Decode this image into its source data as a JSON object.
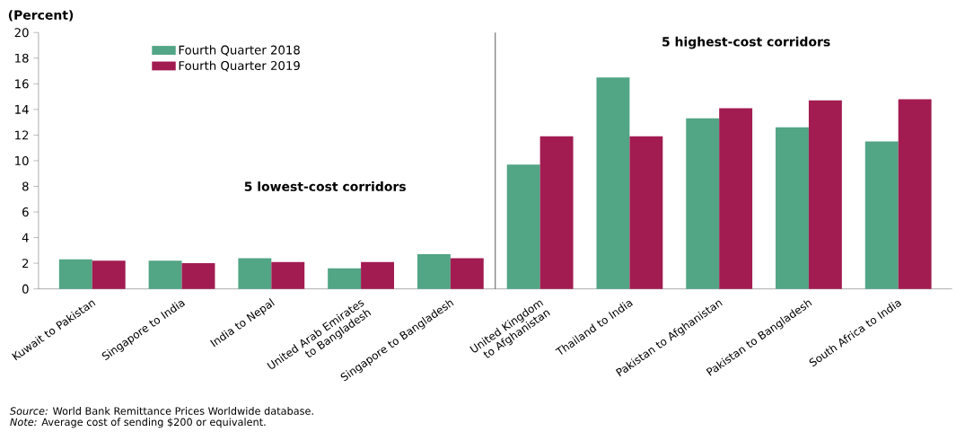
{
  "chart_data": {
    "type": "bar",
    "ylabel": "(Percent)",
    "categories": [
      "Kuwait to Pakistan",
      "Singapore to India",
      "India to Nepal",
      "United Arab Emirates to Bangladesh",
      "Singapore to Bangladesh",
      "United Kingdom to Afghanistan",
      "Thailand to India",
      "Pakistan to Afghanistan",
      "Pakistan to Bangladesh",
      "South Africa to India"
    ],
    "series": [
      {
        "name": "Fourth Quarter 2018",
        "color": "#52a585",
        "values": [
          2.3,
          2.2,
          2.4,
          1.6,
          2.7,
          9.7,
          16.5,
          13.3,
          12.6,
          11.5
        ]
      },
      {
        "name": "Fourth Quarter 2019",
        "color": "#a21c51",
        "values": [
          2.2,
          2.0,
          2.1,
          2.1,
          2.4,
          11.9,
          11.9,
          14.1,
          14.7,
          14.8
        ]
      }
    ],
    "ylim": [
      0,
      20
    ],
    "yticks": [
      0,
      2,
      4,
      6,
      8,
      10,
      12,
      14,
      16,
      18,
      20
    ],
    "legend": "top left",
    "grid": false,
    "annotations": [
      "5 lowest-cost corridors",
      "5 highest-cost corridors",
      "*Source:* World Bank Remittance Prices Worldwide database.",
      "*Note:* Average cost of sending $200 or equivalent."
    ]
  }
}
